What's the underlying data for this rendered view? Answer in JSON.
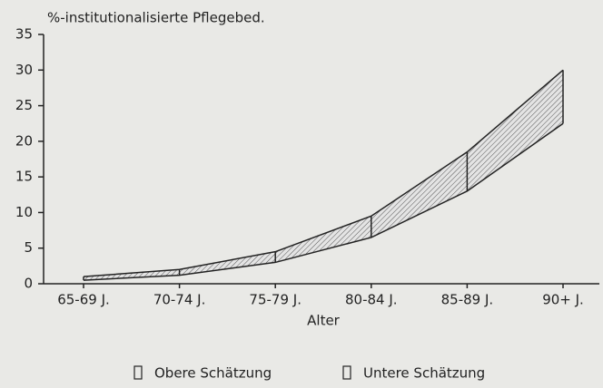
{
  "chart_data": {
    "type": "area",
    "y_axis_label": "%-institutionalisierte Pflegebed.",
    "x_axis_label": "Alter",
    "categories": [
      "65-69 J.",
      "70-74 J.",
      "75-79 J.",
      "80-84 J.",
      "85-89 J.",
      "90+ J."
    ],
    "series": [
      {
        "name": "Obere Schätzung",
        "color": "#222222",
        "values": [
          1.0,
          2.0,
          4.5,
          9.5,
          18.5,
          30
        ]
      },
      {
        "name": "Untere Schätzung",
        "color": "#222222",
        "values": [
          0.5,
          1.2,
          3.0,
          6.5,
          13,
          22.5
        ]
      }
    ],
    "ylim": [
      0,
      35
    ],
    "yticks": [
      0,
      5,
      10,
      15,
      20,
      25,
      30,
      35
    ],
    "band_fill": "#bdbdbd",
    "legend": "bottom"
  }
}
